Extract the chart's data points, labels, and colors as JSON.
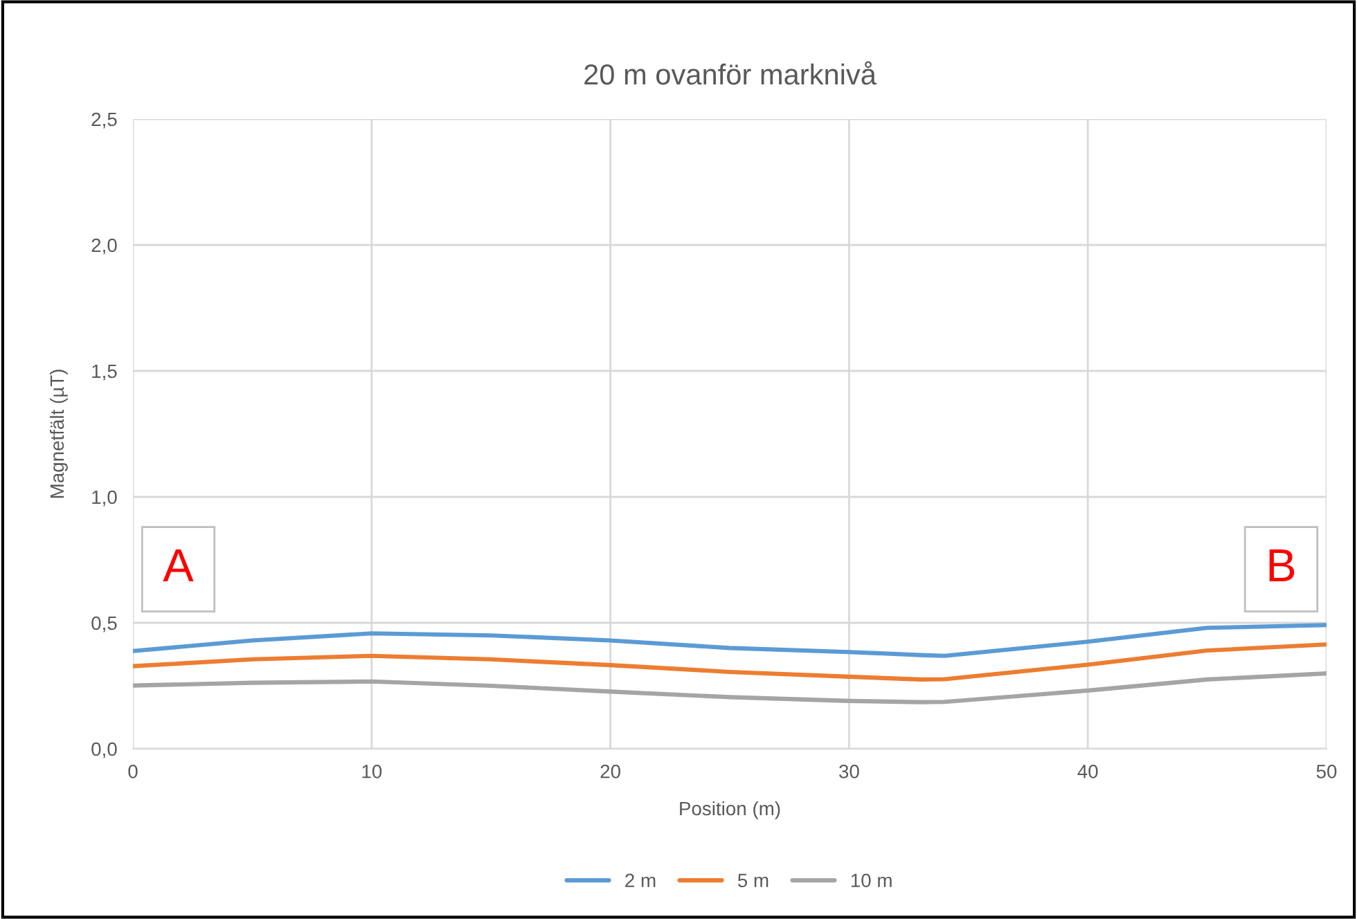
{
  "chart_data": {
    "type": "line",
    "title": "20 m ovanför marknivå",
    "xlabel": "Position (m)",
    "ylabel": "Magnetfält (µT)",
    "x": [
      0,
      5,
      10,
      15,
      20,
      25,
      30,
      33,
      34,
      40,
      45,
      50
    ],
    "series": [
      {
        "name": "2 m",
        "color": "#5b9bd5",
        "values": [
          0.388,
          0.43,
          0.458,
          0.45,
          0.43,
          0.4,
          0.384,
          0.372,
          0.369,
          0.425,
          0.48,
          0.491
        ]
      },
      {
        "name": "5 m",
        "color": "#ed7d31",
        "values": [
          0.328,
          0.355,
          0.369,
          0.355,
          0.332,
          0.305,
          0.286,
          0.275,
          0.276,
          0.334,
          0.39,
          0.414
        ]
      },
      {
        "name": "10 m",
        "color": "#a5a5a5",
        "values": [
          0.251,
          0.262,
          0.267,
          0.25,
          0.227,
          0.205,
          0.19,
          0.185,
          0.186,
          0.231,
          0.275,
          0.299
        ]
      }
    ],
    "xlim": [
      0,
      50
    ],
    "xticks": [
      0,
      10,
      20,
      30,
      40,
      50
    ],
    "ylim": [
      0,
      2.5
    ],
    "yticks": [
      {
        "value": 0,
        "label": "0,0"
      },
      {
        "value": 0.5,
        "label": "0,5"
      },
      {
        "value": 1.0,
        "label": "1,0"
      },
      {
        "value": 1.5,
        "label": "1,5"
      },
      {
        "value": 2.0,
        "label": "2,0"
      },
      {
        "value": 2.5,
        "label": "2,5"
      }
    ],
    "annotations": [
      "A",
      "B"
    ],
    "grid": true,
    "legend": "bottom",
    "marker": "none",
    "line_style": "solid"
  }
}
